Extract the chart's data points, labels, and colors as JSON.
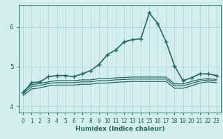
{
  "xlabel": "Humidex (Indice chaleur)",
  "background_color": "#d4eef0",
  "grid_color": "#b0d8db",
  "line_color": "#1e6b60",
  "xlim": [
    -0.5,
    23.5
  ],
  "ylim": [
    3.85,
    6.55
  ],
  "yticks": [
    4,
    5,
    6
  ],
  "xticks": [
    0,
    1,
    2,
    3,
    4,
    5,
    6,
    7,
    8,
    9,
    10,
    11,
    12,
    13,
    14,
    15,
    16,
    17,
    18,
    19,
    20,
    21,
    22,
    23
  ],
  "series": [
    {
      "x": [
        0,
        1,
        2,
        3,
        4,
        5,
        6,
        7,
        8,
        9,
        10,
        11,
        12,
        13,
        14,
        15,
        16,
        17,
        18,
        19,
        20,
        21,
        22,
        23
      ],
      "y": [
        4.35,
        4.6,
        4.62,
        4.75,
        4.78,
        4.78,
        4.75,
        4.82,
        4.9,
        5.05,
        5.3,
        5.42,
        5.62,
        5.68,
        5.7,
        6.35,
        6.08,
        5.62,
        5.02,
        4.65,
        4.72,
        4.82,
        4.82,
        4.78
      ],
      "marker": "+",
      "markersize": 4,
      "linewidth": 1.2,
      "zorder": 5
    },
    {
      "x": [
        0,
        1,
        2,
        3,
        4,
        5,
        6,
        7,
        8,
        9,
        10,
        11,
        12,
        13,
        14,
        15,
        16,
        17,
        18,
        19,
        20,
        21,
        22,
        23
      ],
      "y": [
        4.38,
        4.55,
        4.58,
        4.62,
        4.65,
        4.65,
        4.65,
        4.67,
        4.67,
        4.7,
        4.7,
        4.72,
        4.73,
        4.74,
        4.74,
        4.74,
        4.74,
        4.74,
        4.57,
        4.57,
        4.63,
        4.68,
        4.7,
        4.68
      ],
      "marker": null,
      "markersize": 0,
      "linewidth": 0.9,
      "zorder": 3
    },
    {
      "x": [
        0,
        1,
        2,
        3,
        4,
        5,
        6,
        7,
        8,
        9,
        10,
        11,
        12,
        13,
        14,
        15,
        16,
        17,
        18,
        19,
        20,
        21,
        22,
        23
      ],
      "y": [
        4.33,
        4.5,
        4.53,
        4.58,
        4.6,
        4.6,
        4.6,
        4.62,
        4.62,
        4.65,
        4.65,
        4.67,
        4.68,
        4.69,
        4.69,
        4.69,
        4.69,
        4.69,
        4.52,
        4.52,
        4.58,
        4.64,
        4.67,
        4.65
      ],
      "marker": null,
      "markersize": 0,
      "linewidth": 0.9,
      "zorder": 3
    },
    {
      "x": [
        0,
        1,
        2,
        3,
        4,
        5,
        6,
        7,
        8,
        9,
        10,
        11,
        12,
        13,
        14,
        15,
        16,
        17,
        18,
        19,
        20,
        21,
        22,
        23
      ],
      "y": [
        4.28,
        4.44,
        4.47,
        4.52,
        4.54,
        4.54,
        4.54,
        4.56,
        4.56,
        4.59,
        4.59,
        4.61,
        4.62,
        4.63,
        4.63,
        4.63,
        4.63,
        4.63,
        4.46,
        4.46,
        4.52,
        4.59,
        4.62,
        4.6
      ],
      "marker": null,
      "markersize": 0,
      "linewidth": 0.9,
      "zorder": 3
    }
  ]
}
